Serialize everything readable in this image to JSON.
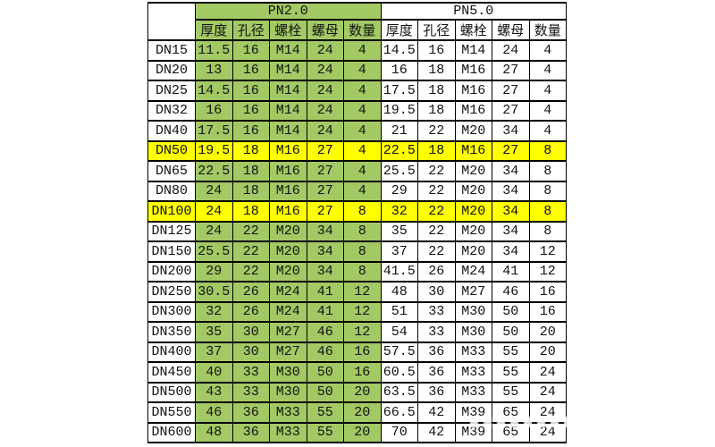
{
  "colors": {
    "group_green": "#a3c965",
    "highlight_yellow": "#ffff00",
    "border_black": "#000000"
  },
  "chart_data": {
    "type": "table",
    "corner_label": "",
    "groups": [
      {
        "label": "PN2.0"
      },
      {
        "label": "PN5.0"
      }
    ],
    "sub_headers": [
      "厚度",
      "孔径",
      "螺栓",
      "螺母",
      "数量"
    ],
    "highlighted_rows": [
      "DN50",
      "DN100"
    ],
    "rows": [
      {
        "dn": "DN15",
        "highlight": false,
        "pn2": [
          "11.5",
          "16",
          "M14",
          "24",
          "4"
        ],
        "pn5": [
          "14.5",
          "16",
          "M14",
          "24",
          "4"
        ]
      },
      {
        "dn": "DN20",
        "highlight": false,
        "pn2": [
          "13",
          "16",
          "M14",
          "24",
          "4"
        ],
        "pn5": [
          "16",
          "18",
          "M16",
          "27",
          "4"
        ]
      },
      {
        "dn": "DN25",
        "highlight": false,
        "pn2": [
          "14.5",
          "16",
          "M14",
          "24",
          "4"
        ],
        "pn5": [
          "17.5",
          "18",
          "M16",
          "27",
          "4"
        ]
      },
      {
        "dn": "DN32",
        "highlight": false,
        "pn2": [
          "16",
          "16",
          "M14",
          "24",
          "4"
        ],
        "pn5": [
          "19.5",
          "18",
          "M16",
          "27",
          "4"
        ]
      },
      {
        "dn": "DN40",
        "highlight": false,
        "pn2": [
          "17.5",
          "16",
          "M14",
          "24",
          "4"
        ],
        "pn5": [
          "21",
          "22",
          "M20",
          "34",
          "4"
        ]
      },
      {
        "dn": "DN50",
        "highlight": true,
        "pn2": [
          "19.5",
          "18",
          "M16",
          "27",
          "4"
        ],
        "pn5": [
          "22.5",
          "18",
          "M16",
          "27",
          "8"
        ]
      },
      {
        "dn": "DN65",
        "highlight": false,
        "pn2": [
          "22.5",
          "18",
          "M16",
          "27",
          "4"
        ],
        "pn5": [
          "25.5",
          "22",
          "M20",
          "34",
          "8"
        ]
      },
      {
        "dn": "DN80",
        "highlight": false,
        "pn2": [
          "24",
          "18",
          "M16",
          "27",
          "4"
        ],
        "pn5": [
          "29",
          "22",
          "M20",
          "34",
          "8"
        ]
      },
      {
        "dn": "DN100",
        "highlight": true,
        "pn2": [
          "24",
          "18",
          "M16",
          "27",
          "8"
        ],
        "pn5": [
          "32",
          "22",
          "M20",
          "34",
          "8"
        ]
      },
      {
        "dn": "DN125",
        "highlight": false,
        "pn2": [
          "24",
          "22",
          "M20",
          "34",
          "8"
        ],
        "pn5": [
          "35",
          "22",
          "M20",
          "34",
          "8"
        ]
      },
      {
        "dn": "DN150",
        "highlight": false,
        "pn2": [
          "25.5",
          "22",
          "M20",
          "34",
          "8"
        ],
        "pn5": [
          "37",
          "22",
          "M20",
          "34",
          "12"
        ]
      },
      {
        "dn": "DN200",
        "highlight": false,
        "pn2": [
          "29",
          "22",
          "M20",
          "34",
          "8"
        ],
        "pn5": [
          "41.5",
          "26",
          "M24",
          "41",
          "12"
        ]
      },
      {
        "dn": "DN250",
        "highlight": false,
        "pn2": [
          "30.5",
          "26",
          "M24",
          "41",
          "12"
        ],
        "pn5": [
          "48",
          "30",
          "M27",
          "46",
          "16"
        ]
      },
      {
        "dn": "DN300",
        "highlight": false,
        "pn2": [
          "32",
          "26",
          "M24",
          "41",
          "12"
        ],
        "pn5": [
          "51",
          "33",
          "M30",
          "50",
          "16"
        ]
      },
      {
        "dn": "DN350",
        "highlight": false,
        "pn2": [
          "35",
          "30",
          "M27",
          "46",
          "12"
        ],
        "pn5": [
          "54",
          "33",
          "M30",
          "50",
          "20"
        ]
      },
      {
        "dn": "DN400",
        "highlight": false,
        "pn2": [
          "37",
          "30",
          "M27",
          "46",
          "16"
        ],
        "pn5": [
          "57.5",
          "36",
          "M33",
          "55",
          "20"
        ]
      },
      {
        "dn": "DN450",
        "highlight": false,
        "pn2": [
          "40",
          "33",
          "M30",
          "50",
          "16"
        ],
        "pn5": [
          "60.5",
          "36",
          "M33",
          "55",
          "24"
        ]
      },
      {
        "dn": "DN500",
        "highlight": false,
        "pn2": [
          "43",
          "33",
          "M30",
          "50",
          "20"
        ],
        "pn5": [
          "63.5",
          "36",
          "M33",
          "55",
          "24"
        ]
      },
      {
        "dn": "DN550",
        "highlight": false,
        "pn2": [
          "46",
          "36",
          "M33",
          "55",
          "20"
        ],
        "pn5": [
          "66.5",
          "42",
          "M39",
          "65",
          "24"
        ]
      },
      {
        "dn": "DN600",
        "highlight": false,
        "pn2": [
          "48",
          "36",
          "M33",
          "55",
          "20"
        ],
        "pn5": [
          "70",
          "42",
          "M39",
          "65",
          "24"
        ]
      }
    ]
  }
}
